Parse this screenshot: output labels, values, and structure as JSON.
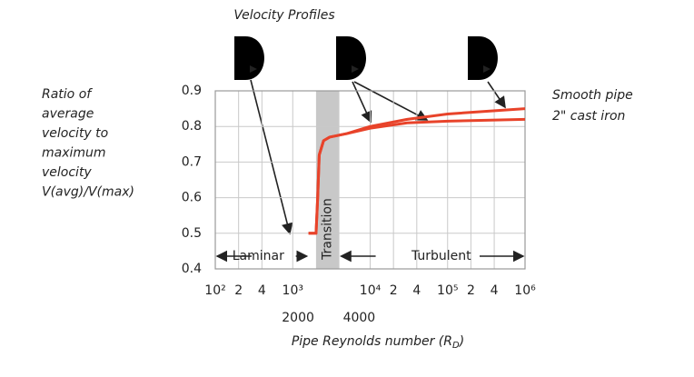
{
  "chart_data": {
    "type": "line",
    "title": "Velocity Profiles",
    "y_label": [
      "Ratio of",
      "average",
      "velocity to",
      "maximum",
      "velocity",
      "V(avg)/V(max)"
    ],
    "x_label": {
      "text": "Pipe Reynolds number (R",
      "sub": "D",
      "end": ")"
    },
    "log_x": true,
    "xlim": [
      100,
      1000000
    ],
    "xticks": [
      {
        "value": 100,
        "label": "10²"
      },
      {
        "value": 200,
        "label": "2"
      },
      {
        "value": 400,
        "label": "4"
      },
      {
        "value": 1000,
        "label": "10³"
      },
      {
        "value": 10000,
        "label": "10⁴"
      },
      {
        "value": 20000,
        "label": "2"
      },
      {
        "value": 40000,
        "label": "4"
      },
      {
        "value": 100000,
        "label": "10⁵"
      },
      {
        "value": 200000,
        "label": "2"
      },
      {
        "value": 400000,
        "label": "4"
      },
      {
        "value": 1000000,
        "label": "10⁶"
      }
    ],
    "ylim": [
      0.4,
      0.9
    ],
    "yticks": [
      0.4,
      0.5,
      0.6,
      0.7,
      0.8,
      0.9
    ],
    "grid": true,
    "transition_band": [
      2000,
      4000
    ],
    "band_color": "#c8c8c8",
    "regions": {
      "laminar": "Laminar",
      "transition": "Transition",
      "turbulent": "Turbulent"
    },
    "series": [
      {
        "name": "Smooth pipe",
        "color": "#e8432a",
        "x": [
          1600,
          2000,
          2100,
          2200,
          2500,
          3000,
          5000,
          10000,
          30000,
          100000,
          1000000
        ],
        "values": [
          0.5,
          0.5,
          0.6,
          0.72,
          0.76,
          0.77,
          0.78,
          0.8,
          0.82,
          0.835,
          0.85
        ]
      },
      {
        "name": "2\" cast iron",
        "color": "#e8432a",
        "x": [
          1600,
          2000,
          2100,
          2200,
          2500,
          3000,
          5000,
          10000,
          30000,
          100000,
          1000000
        ],
        "values": [
          0.5,
          0.5,
          0.6,
          0.72,
          0.76,
          0.77,
          0.78,
          0.795,
          0.81,
          0.815,
          0.82
        ]
      }
    ]
  }
}
